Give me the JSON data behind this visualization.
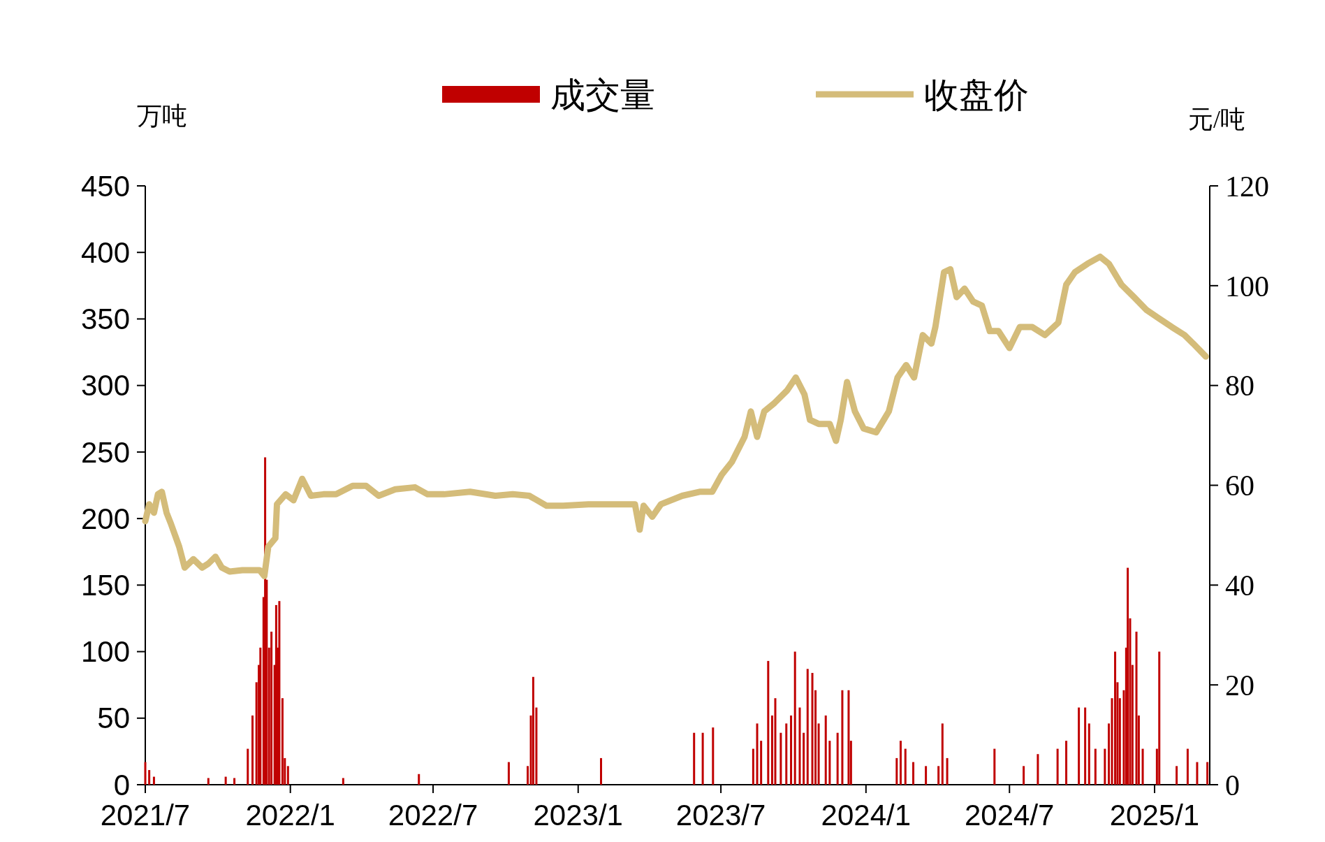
{
  "chart_data": {
    "type": "bar",
    "legend": "top",
    "ylabel": "万吨",
    "y2label": "元/吨",
    "xlim": [
      "2021-07-01",
      "2025-03-12"
    ],
    "xticks": [
      {
        "value": "2021-07-01",
        "label": "2021/7"
      },
      {
        "value": "2022-01-01",
        "label": "2022/1"
      },
      {
        "value": "2022-07-01",
        "label": "2022/7"
      },
      {
        "value": "2023-01-01",
        "label": "2023/1"
      },
      {
        "value": "2023-07-01",
        "label": "2023/7"
      },
      {
        "value": "2024-01-01",
        "label": "2024/1"
      },
      {
        "value": "2024-07-01",
        "label": "2024/7"
      },
      {
        "value": "2025-01-01",
        "label": "2025/1"
      }
    ],
    "ylim": [
      0,
      450
    ],
    "yticks": [
      0,
      50,
      100,
      150,
      200,
      250,
      300,
      350,
      400,
      450
    ],
    "y2lim": [
      0,
      120
    ],
    "y2ticks": [
      0,
      20,
      40,
      60,
      80,
      100,
      120
    ],
    "series": [
      {
        "name": "成交量",
        "color": "#c00000",
        "x": [
          "2021-07-01",
          "2021-07-06",
          "2021-07-12",
          "2021-09-19",
          "2021-10-11",
          "2021-10-22",
          "2021-11-08",
          "2021-11-14",
          "2021-11-19",
          "2021-11-22",
          "2021-11-24",
          "2021-11-28",
          "2021-11-30",
          "2021-12-02",
          "2021-12-05",
          "2021-12-08",
          "2021-12-12",
          "2021-12-14",
          "2021-12-16",
          "2021-12-18",
          "2021-12-22",
          "2021-12-25",
          "2021-12-29",
          "2022-03-09",
          "2022-06-13",
          "2022-10-05",
          "2022-10-29",
          "2022-11-02",
          "2022-11-05",
          "2022-11-09",
          "2023-01-30",
          "2023-05-28",
          "2023-06-08",
          "2023-06-21",
          "2023-08-11",
          "2023-08-16",
          "2023-08-21",
          "2023-08-30",
          "2023-09-04",
          "2023-09-08",
          "2023-09-15",
          "2023-09-22",
          "2023-09-28",
          "2023-10-03",
          "2023-10-09",
          "2023-10-14",
          "2023-10-19",
          "2023-10-25",
          "2023-10-29",
          "2023-11-02",
          "2023-11-11",
          "2023-11-16",
          "2023-11-26",
          "2023-12-02",
          "2023-12-10",
          "2023-12-13",
          "2024-02-09",
          "2024-02-14",
          "2024-02-20",
          "2024-03-01",
          "2024-03-17",
          "2024-04-02",
          "2024-04-07",
          "2024-04-13",
          "2024-06-12",
          "2024-07-19",
          "2024-08-06",
          "2024-08-31",
          "2024-09-11",
          "2024-09-27",
          "2024-10-05",
          "2024-10-10",
          "2024-10-18",
          "2024-10-30",
          "2024-11-04",
          "2024-11-08",
          "2024-11-12",
          "2024-11-15",
          "2024-11-18",
          "2024-11-23",
          "2024-11-26",
          "2024-11-28",
          "2024-12-01",
          "2024-12-04",
          "2024-12-09",
          "2024-12-12",
          "2024-12-17",
          "2025-01-04",
          "2025-01-07",
          "2025-01-29",
          "2025-02-12",
          "2025-02-24",
          "2025-03-09"
        ],
        "values": [
          17,
          11,
          6,
          5,
          6,
          5,
          27,
          52,
          77,
          90,
          103,
          141,
          246,
          154,
          103,
          115,
          90,
          135,
          103,
          138,
          65,
          20,
          14,
          5,
          8,
          17,
          14,
          52,
          81,
          58,
          20,
          39,
          39,
          43,
          27,
          46,
          33,
          93,
          52,
          65,
          39,
          46,
          52,
          100,
          58,
          39,
          87,
          84,
          71,
          46,
          52,
          33,
          39,
          71,
          71,
          33,
          20,
          33,
          27,
          17,
          14,
          14,
          46,
          20,
          27,
          14,
          23,
          27,
          33,
          58,
          58,
          46,
          27,
          27,
          46,
          65,
          100,
          77,
          65,
          71,
          103,
          163,
          125,
          90,
          115,
          52,
          27,
          27,
          100,
          14,
          27,
          17,
          17
        ]
      },
      {
        "name": "收盘价",
        "type": "line",
        "axis": "y2",
        "color": "#d4bc7a",
        "x": [
          "2021-07-01",
          "2021-07-06",
          "2021-07-12",
          "2021-07-17",
          "2021-07-22",
          "2021-07-28",
          "2021-08-02",
          "2021-08-13",
          "2021-08-20",
          "2021-08-31",
          "2021-09-11",
          "2021-09-19",
          "2021-09-28",
          "2021-10-06",
          "2021-10-16",
          "2021-11-01",
          "2021-11-23",
          "2021-11-29",
          "2021-12-04",
          "2021-12-13",
          "2021-12-15",
          "2021-12-26",
          "2022-01-05",
          "2022-01-16",
          "2022-01-27",
          "2022-02-12",
          "2022-02-28",
          "2022-03-21",
          "2022-04-07",
          "2022-04-23",
          "2022-05-14",
          "2022-06-08",
          "2022-06-24",
          "2022-07-15",
          "2022-08-17",
          "2022-09-18",
          "2022-10-10",
          "2022-10-31",
          "2022-11-22",
          "2022-12-13",
          "2023-01-14",
          "2023-02-15",
          "2023-03-14",
          "2023-03-20",
          "2023-03-25",
          "2023-04-05",
          "2023-04-16",
          "2023-05-13",
          "2023-06-04",
          "2023-06-20",
          "2023-07-02",
          "2023-07-15",
          "2023-07-31",
          "2023-08-08",
          "2023-08-16",
          "2023-08-25",
          "2023-09-07",
          "2023-09-23",
          "2023-10-04",
          "2023-10-15",
          "2023-10-22",
          "2023-11-02",
          "2023-11-16",
          "2023-11-24",
          "2023-11-30",
          "2023-12-08",
          "2023-12-18",
          "2023-12-29",
          "2024-01-14",
          "2024-01-30",
          "2024-02-10",
          "2024-02-21",
          "2024-03-02",
          "2024-03-13",
          "2024-03-24",
          "2024-03-29",
          "2024-04-09",
          "2024-04-17",
          "2024-04-25",
          "2024-05-05",
          "2024-05-16",
          "2024-05-27",
          "2024-06-06",
          "2024-06-17",
          "2024-07-01",
          "2024-07-14",
          "2024-07-30",
          "2024-08-15",
          "2024-09-01",
          "2024-09-11",
          "2024-09-22",
          "2024-10-08",
          "2024-10-24",
          "2024-11-04",
          "2024-11-20",
          "2024-12-06",
          "2024-12-22",
          "2025-01-07",
          "2025-01-23",
          "2025-02-08",
          "2025-02-19",
          "2025-03-07"
        ],
        "values": [
          52.8,
          56.2,
          54.5,
          58.2,
          58.7,
          54.5,
          52.5,
          47.7,
          43.5,
          45.2,
          43.5,
          44.3,
          45.7,
          43.5,
          42.7,
          43.0,
          43.0,
          41.8,
          47.7,
          49.4,
          56.2,
          58.2,
          57.0,
          61.3,
          57.9,
          58.2,
          58.2,
          59.9,
          59.9,
          57.9,
          59.2,
          59.6,
          58.2,
          58.2,
          58.7,
          57.9,
          58.2,
          57.9,
          55.9,
          55.9,
          56.2,
          56.2,
          56.2,
          51.1,
          55.9,
          53.7,
          56.2,
          57.9,
          58.7,
          58.7,
          62.1,
          64.7,
          69.7,
          74.8,
          69.7,
          74.8,
          76.5,
          79.0,
          81.6,
          78.2,
          73.1,
          72.3,
          72.3,
          68.9,
          73.1,
          80.7,
          74.8,
          71.4,
          70.6,
          74.8,
          81.6,
          84.1,
          81.6,
          90.1,
          88.4,
          91.7,
          102.7,
          103.3,
          97.7,
          99.4,
          96.8,
          96.0,
          90.9,
          90.9,
          87.5,
          91.7,
          91.7,
          90.1,
          92.6,
          100.2,
          102.7,
          104.4,
          105.8,
          104.4,
          100.2,
          97.7,
          95.1,
          93.4,
          91.7,
          90.1,
          88.4,
          85.8
        ]
      }
    ]
  }
}
